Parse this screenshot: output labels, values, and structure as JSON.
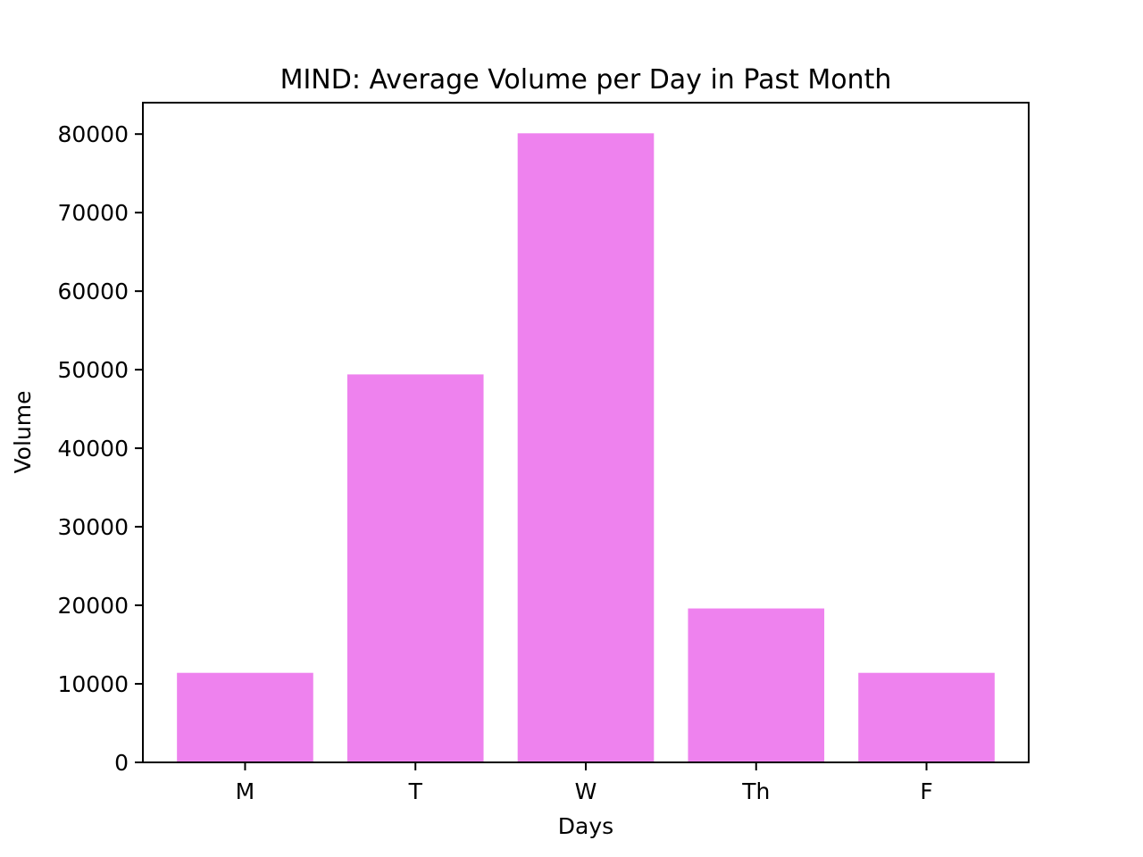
{
  "chart_data": {
    "type": "bar",
    "title": "MIND: Average Volume per Day in Past Month",
    "xlabel": "Days",
    "ylabel": "Volume",
    "categories": [
      "M",
      "T",
      "W",
      "Th",
      "F"
    ],
    "values": [
      11400,
      49400,
      80100,
      19600,
      11400
    ],
    "ylim": [
      0,
      84000
    ],
    "yticks": [
      0,
      10000,
      20000,
      30000,
      40000,
      50000,
      60000,
      70000,
      80000
    ],
    "bar_color": "#ee82ee",
    "grid": false,
    "legend": "none"
  }
}
